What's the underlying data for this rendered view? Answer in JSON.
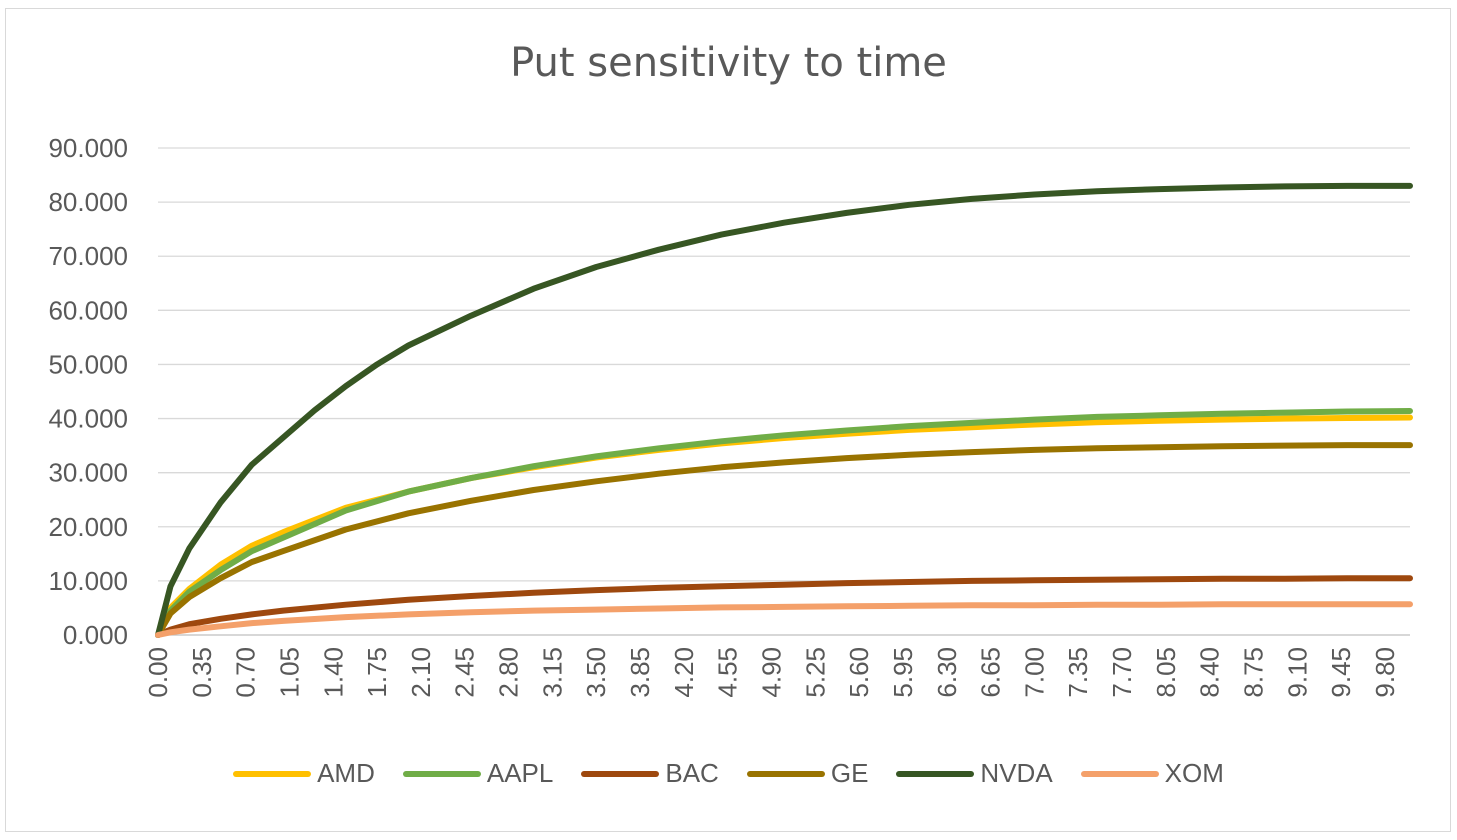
{
  "chart_data": {
    "type": "line",
    "title": "Put sensitivity to time",
    "xlabel": "",
    "ylabel": "",
    "xlim": [
      0,
      10
    ],
    "ylim": [
      0,
      90
    ],
    "y_ticks": [
      "0.000",
      "10.000",
      "20.000",
      "30.000",
      "40.000",
      "50.000",
      "60.000",
      "70.000",
      "80.000",
      "90.000"
    ],
    "x_ticks": [
      "0.00",
      "0.35",
      "0.70",
      "1.05",
      "1.40",
      "1.75",
      "2.10",
      "2.45",
      "2.80",
      "3.15",
      "3.50",
      "3.85",
      "4.20",
      "4.55",
      "4.90",
      "5.25",
      "5.60",
      "5.95",
      "6.30",
      "6.65",
      "7.00",
      "7.35",
      "7.70",
      "8.05",
      "8.40",
      "8.75",
      "9.10",
      "9.45",
      "9.80"
    ],
    "grid": "horizontal",
    "legend_position": "bottom",
    "series": [
      {
        "name": "AMD",
        "color": "#FFC000",
        "x": [
          0,
          0.1,
          0.25,
          0.5,
          0.75,
          1,
          1.5,
          2,
          2.5,
          3,
          3.5,
          4,
          4.5,
          5,
          5.5,
          6,
          6.5,
          7,
          7.5,
          8,
          8.5,
          9,
          9.5,
          10
        ],
        "y": [
          0,
          5,
          8.5,
          13,
          16.5,
          19,
          23.5,
          26.5,
          29,
          31,
          32.8,
          34.2,
          35.4,
          36.4,
          37.2,
          37.9,
          38.4,
          38.9,
          39.3,
          39.6,
          39.8,
          40,
          40.1,
          40.2
        ]
      },
      {
        "name": "AAPL",
        "color": "#70AD47",
        "x": [
          0,
          0.1,
          0.25,
          0.5,
          0.75,
          1,
          1.5,
          2,
          2.5,
          3,
          3.5,
          4,
          4.5,
          5,
          5.5,
          6,
          6.5,
          7,
          7.5,
          8,
          8.5,
          9,
          9.5,
          10
        ],
        "y": [
          0,
          4.5,
          8,
          12,
          15.5,
          18,
          23,
          26.5,
          29,
          31.2,
          33,
          34.5,
          35.8,
          36.9,
          37.8,
          38.6,
          39.2,
          39.8,
          40.3,
          40.6,
          40.9,
          41.1,
          41.3,
          41.4
        ]
      },
      {
        "name": "BAC",
        "color": "#9E480E",
        "x": [
          0,
          0.1,
          0.25,
          0.5,
          0.75,
          1,
          1.5,
          2,
          2.5,
          3,
          3.5,
          4,
          4.5,
          5,
          5.5,
          6,
          6.5,
          7,
          7.5,
          8,
          8.5,
          9,
          9.5,
          10
        ],
        "y": [
          0,
          1,
          2,
          3,
          3.8,
          4.5,
          5.6,
          6.5,
          7.2,
          7.8,
          8.3,
          8.7,
          9,
          9.3,
          9.6,
          9.8,
          10,
          10.1,
          10.2,
          10.3,
          10.4,
          10.4,
          10.5,
          10.5
        ]
      },
      {
        "name": "GE",
        "color": "#997300",
        "x": [
          0,
          0.1,
          0.25,
          0.5,
          0.75,
          1,
          1.5,
          2,
          2.5,
          3,
          3.5,
          4,
          4.5,
          5,
          5.5,
          6,
          6.5,
          7,
          7.5,
          8,
          8.5,
          9,
          9.5,
          10
        ],
        "y": [
          0,
          4,
          7,
          10.5,
          13.5,
          15.5,
          19.5,
          22.5,
          24.8,
          26.8,
          28.4,
          29.8,
          31,
          31.9,
          32.7,
          33.3,
          33.8,
          34.2,
          34.5,
          34.7,
          34.9,
          35,
          35.1,
          35.1
        ]
      },
      {
        "name": "NVDA",
        "color": "#375623",
        "x": [
          0,
          0.1,
          0.25,
          0.5,
          0.75,
          1,
          1.25,
          1.5,
          1.75,
          2,
          2.5,
          3,
          3.5,
          4,
          4.5,
          5,
          5.5,
          6,
          6.5,
          7,
          7.5,
          8,
          8.5,
          9,
          9.5,
          10
        ],
        "y": [
          0,
          9,
          16,
          24.5,
          31.5,
          36.5,
          41.5,
          46,
          50,
          53.5,
          59,
          64,
          68,
          71.2,
          74,
          76.2,
          78,
          79.5,
          80.6,
          81.4,
          82,
          82.4,
          82.7,
          82.9,
          83,
          83
        ]
      },
      {
        "name": "XOM",
        "color": "#F4A06A",
        "x": [
          0,
          0.1,
          0.25,
          0.5,
          0.75,
          1,
          1.5,
          2,
          2.5,
          3,
          3.5,
          4,
          4.5,
          5,
          5.5,
          6,
          6.5,
          7,
          7.5,
          8,
          8.5,
          9,
          9.5,
          10
        ],
        "y": [
          0,
          0.5,
          1,
          1.6,
          2.2,
          2.6,
          3.3,
          3.8,
          4.2,
          4.5,
          4.7,
          4.9,
          5.1,
          5.2,
          5.3,
          5.4,
          5.5,
          5.5,
          5.6,
          5.6,
          5.7,
          5.7,
          5.7,
          5.7
        ]
      }
    ]
  }
}
